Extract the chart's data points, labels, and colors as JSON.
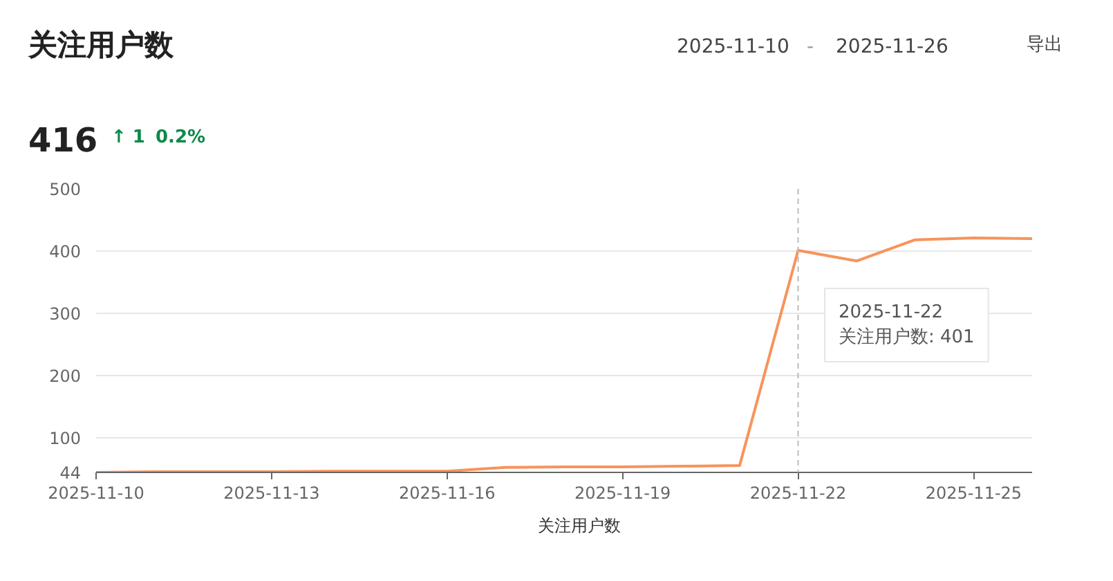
{
  "chart_data": {
    "type": "line",
    "title": "关注用户数",
    "annotations": [
      "2025-11-10",
      "-",
      "2025-11-26",
      "导出",
      "416",
      "↑ 1",
      "0.2%",
      "2025-11-22\n关注用户数: 401"
    ],
    "x": [
      "2025-11-10",
      "2025-11-11",
      "2025-11-12",
      "2025-11-13",
      "2025-11-14",
      "2025-11-15",
      "2025-11-16",
      "2025-11-17",
      "2025-11-18",
      "2025-11-19",
      "2025-11-20",
      "2025-11-21",
      "2025-11-22",
      "2025-11-23",
      "2025-11-24",
      "2025-11-25",
      "2025-11-26"
    ],
    "series": [
      {
        "name": "关注用户数",
        "color": "#f7945b",
        "values": [
          44,
          45,
          45,
          45,
          46,
          46,
          46,
          52,
          53,
          53,
          54,
          55,
          401,
          384,
          418,
          421,
          420
        ]
      }
    ],
    "xlim": [
      "2025-11-10",
      "2025-11-26"
    ],
    "xticks": [
      "2025-11-10",
      "2025-11-13",
      "2025-11-16",
      "2025-11-19",
      "2025-11-22",
      "2025-11-25"
    ],
    "ylim": [
      44,
      500
    ],
    "yticks": [
      44,
      100,
      200,
      300,
      400,
      500
    ],
    "ref_lines": [
      {
        "axis": "x",
        "value": "2025-11-22",
        "label": null,
        "color": "#bbbbbb",
        "line_style": "dashed"
      }
    ],
    "grid": "y",
    "legend": "bottom",
    "marker": "none",
    "line_style": "solid"
  }
}
